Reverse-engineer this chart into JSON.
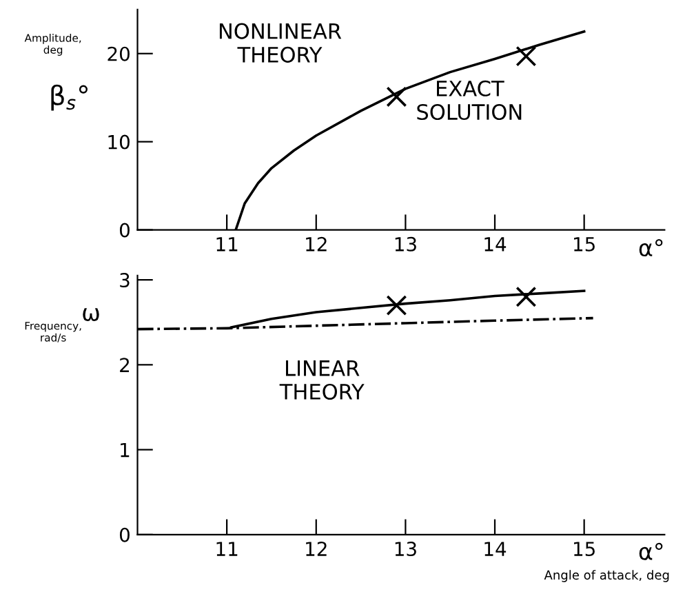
{
  "chart_data": [
    {
      "type": "line",
      "xlabel": "α°",
      "ylabel": "Amplitude,\ndeg",
      "xlim": [
        10,
        15.9
      ],
      "xticks": [
        11,
        12,
        13,
        14,
        15
      ],
      "ylim": [
        0,
        25
      ],
      "yticks": [
        0,
        10,
        20
      ],
      "grid": false,
      "annotations": [
        "β$_{s}$°",
        "NONLINEAR\nTHEORY",
        "EXACT\nSOLUTION"
      ],
      "series": [
        {
          "color": "#000000",
          "line_style": "solid",
          "marker": "none",
          "x": [
            11.1,
            11.2,
            11.35,
            11.5,
            11.75,
            12.0,
            12.5,
            13.0,
            13.5,
            14.0,
            14.5,
            15.0
          ],
          "values": [
            0,
            3,
            5.3,
            7,
            9,
            10.7,
            13.5,
            16,
            17.9,
            19.4,
            21,
            22.5
          ]
        },
        {
          "type": "scatter",
          "color": "#000000",
          "marker": "cross",
          "x": [
            12.9,
            14.35
          ],
          "values": [
            15.1,
            19.7
          ]
        }
      ]
    },
    {
      "type": "line",
      "xlabel": "α°",
      "ylabel": "Frequency,\nrad/s",
      "xlim": [
        10,
        15.9
      ],
      "xticks": [
        11,
        12,
        13,
        14,
        15
      ],
      "ylim": [
        0,
        3.05
      ],
      "yticks": [
        0,
        1,
        2,
        3
      ],
      "grid": false,
      "annotations": [
        "ω",
        "LINEAR\nTHEORY",
        "Angle of attack, deg"
      ],
      "series": [
        {
          "color": "#000000",
          "line_style": "dashdot",
          "marker": "none",
          "x": [
            10.0,
            11.0,
            12.0,
            13.0,
            14.0,
            15.1
          ],
          "values": [
            2.42,
            2.43,
            2.46,
            2.49,
            2.52,
            2.55
          ]
        },
        {
          "color": "#000000",
          "line_style": "solid",
          "marker": "none",
          "x": [
            11.05,
            11.5,
            12.0,
            12.5,
            13.0,
            13.5,
            14.0,
            14.5,
            15.0
          ],
          "values": [
            2.44,
            2.54,
            2.62,
            2.67,
            2.72,
            2.76,
            2.81,
            2.84,
            2.87
          ]
        },
        {
          "type": "scatter",
          "color": "#000000",
          "marker": "cross",
          "x": [
            12.9,
            14.35
          ],
          "values": [
            2.7,
            2.8
          ]
        }
      ]
    }
  ]
}
